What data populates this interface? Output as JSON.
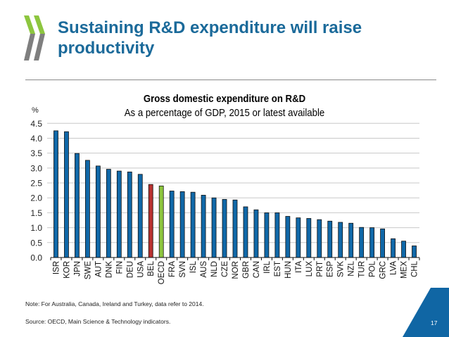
{
  "slide": {
    "title": "Sustaining R&D expenditure will raise productivity",
    "note": "Note: For Australia, Canada, Ireland and Turkey, data refer to 2014.",
    "source": "Source: OECD, Main Science & Technology indicators.",
    "page_number": "17",
    "brand_colors": {
      "title": "#1B6A9A",
      "logo_green": "#8DC63F",
      "logo_gray": "#7F7F7F",
      "page_badge": "#1066A4"
    }
  },
  "chart_data": {
    "type": "bar",
    "title": "Gross domestic expenditure on R&D",
    "subtitle": "As a percentage of GDP, 2015 or latest available",
    "xlabel": "",
    "ylabel": "%",
    "ylim": [
      0,
      4.5
    ],
    "yticks": [
      "0.0",
      "0.5",
      "1.0",
      "1.5",
      "2.0",
      "2.5",
      "3.0",
      "3.5",
      "4.0",
      "4.5"
    ],
    "grid": true,
    "legend": "none",
    "categories": [
      "ISR",
      "KOR",
      "JPN",
      "SWE",
      "AUT",
      "DNK",
      "FIN",
      "DEU",
      "USA",
      "BEL",
      "OECD",
      "FRA",
      "SVN",
      "ISL",
      "AUS",
      "NLD",
      "CZE",
      "NOR",
      "GBR",
      "CAN",
      "IRL",
      "EST",
      "HUN",
      "ITA",
      "LUX",
      "PRT",
      "ESP",
      "SVK",
      "NZL",
      "TUR",
      "POL",
      "GRC",
      "LVA",
      "MEX",
      "CHL"
    ],
    "values": [
      4.25,
      4.22,
      3.49,
      3.26,
      3.07,
      2.96,
      2.9,
      2.87,
      2.79,
      2.45,
      2.4,
      2.23,
      2.21,
      2.19,
      2.09,
      2.0,
      1.95,
      1.93,
      1.7,
      1.6,
      1.5,
      1.5,
      1.38,
      1.33,
      1.31,
      1.27,
      1.22,
      1.18,
      1.15,
      1.01,
      1.0,
      0.96,
      0.63,
      0.55,
      0.39
    ],
    "colors": {
      "default": "#1068A8",
      "highlight_BEL": "#B8312F",
      "highlight_OECD": "#8DC63F"
    },
    "highlights": {
      "BEL": "#B8312F",
      "OECD": "#8DC63F"
    }
  }
}
